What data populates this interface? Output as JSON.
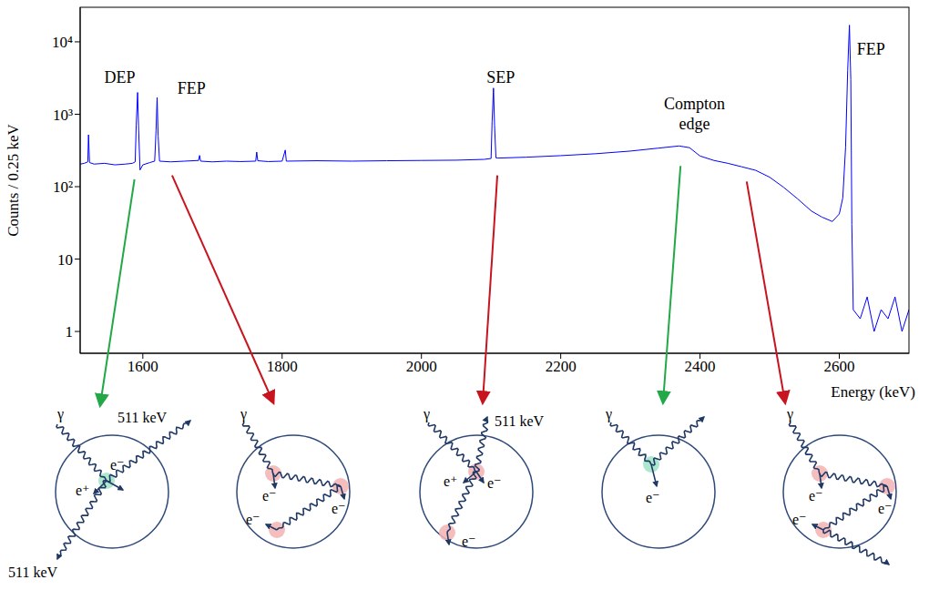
{
  "chart_data": {
    "type": "line",
    "x": [
      1510,
      1516,
      1521,
      1522,
      1523.5,
      1530,
      1545,
      1560,
      1575,
      1585,
      1589,
      1590.5,
      1592.5,
      1594,
      1596,
      1600,
      1610,
      1617,
      1619,
      1620.5,
      1622,
      1624,
      1640,
      1660,
      1680,
      1681.5,
      1683,
      1700,
      1720,
      1740,
      1762,
      1763.5,
      1765,
      1780,
      1800,
      1804.5,
      1806,
      1850,
      1900,
      1950,
      2000,
      2050,
      2090,
      2100,
      2101.5,
      2103.5,
      2105,
      2107,
      2110,
      2150,
      2200,
      2250,
      2300,
      2340,
      2370,
      2385,
      2400,
      2420,
      2440,
      2460,
      2480,
      2500,
      2520,
      2540,
      2560,
      2575,
      2590,
      2600,
      2605,
      2609,
      2612,
      2614.5,
      2616.5,
      2618,
      2620,
      2630,
      2640,
      2650,
      2660,
      2670,
      2680,
      2690,
      2700
    ],
    "values": [
      205,
      210,
      220,
      520,
      215,
      205,
      210,
      200,
      205,
      210,
      220,
      700,
      2000,
      600,
      170,
      200,
      215,
      225,
      600,
      1700,
      500,
      225,
      220,
      225,
      230,
      270,
      225,
      220,
      225,
      222,
      225,
      300,
      228,
      222,
      225,
      320,
      225,
      228,
      225,
      228,
      230,
      232,
      238,
      245,
      800,
      2300,
      700,
      250,
      248,
      255,
      268,
      285,
      310,
      340,
      365,
      345,
      265,
      230,
      210,
      188,
      168,
      135,
      98,
      68,
      46,
      38,
      33,
      42,
      70,
      350,
      4000,
      17000,
      3000,
      30,
      2,
      1.5,
      3,
      1,
      2,
      1.5,
      3,
      1,
      2
    ],
    "color": "#0000ff",
    "xlim": [
      1510,
      2700
    ],
    "xticks": [
      1600,
      1800,
      2000,
      2200,
      2400,
      2600
    ],
    "ylim": [
      0.5,
      30000
    ],
    "yticks": [
      1,
      10,
      {
        "value": 100,
        "label": "10²"
      },
      {
        "value": 1000,
        "label": "10³"
      },
      {
        "value": 10000,
        "label": "10⁴"
      }
    ],
    "log": "y",
    "grid": false,
    "x_label": "Energy (keV)",
    "y_label": "Counts / 0.25 keV",
    "annotations": [
      {
        "text": "DEP",
        "x": 1567,
        "y": 3200
      },
      {
        "text": "FEP",
        "x": 1670,
        "y": 2300
      },
      {
        "text": "SEP",
        "x": 2114,
        "y": 3200
      },
      {
        "text": "Compton edge",
        "x": 2392,
        "y": 1000
      },
      {
        "text": "FEP",
        "x": 2625,
        "y": 8000
      }
    ]
  },
  "diagrams": [
    {
      "arrow_from": {
        "x": 1588,
        "y": 150
      },
      "arrow_color": "#22a846",
      "blob_color": "#9fe3c4",
      "labels": [
        "γ",
        "511 keV",
        "e⁻",
        "e⁺",
        "511 keV"
      ]
    },
    {
      "arrow_from": {
        "x": 1642,
        "y": 170
      },
      "arrow_color": "#c8141e",
      "blob_color": "#f2b3b3",
      "labels": [
        "γ",
        "e⁻",
        "e⁻",
        "e⁻"
      ]
    },
    {
      "arrow_from": {
        "x": 2109,
        "y": 170
      },
      "arrow_color": "#c8141e",
      "blob_color": "#f2b3b3",
      "labels": [
        "γ",
        "511 keV",
        "e⁻",
        "e⁺",
        "e⁻"
      ]
    },
    {
      "arrow_from": {
        "x": 2372,
        "y": 230
      },
      "arrow_color": "#22a846",
      "blob_color": "#9fe3c4",
      "labels": [
        "γ",
        "e⁻"
      ]
    },
    {
      "arrow_from": {
        "x": 2467,
        "y": 140
      },
      "arrow_color": "#c8141e",
      "blob_color": "#f2b3b3",
      "labels": [
        "γ",
        "e⁻",
        "e⁻",
        "e⁻"
      ]
    }
  ]
}
